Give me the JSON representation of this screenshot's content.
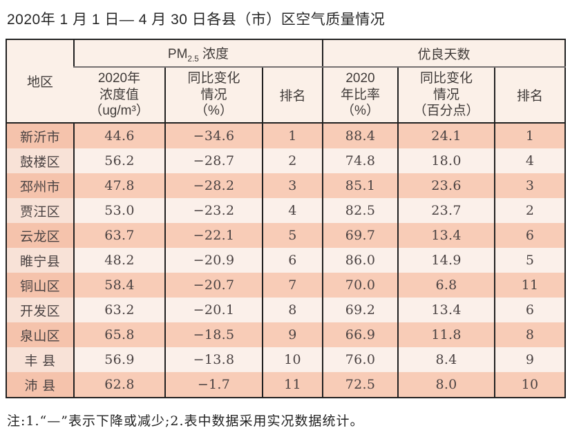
{
  "title": "2020年 1 月 1 日— 4 月 30 日各县（市）区空气质量情况",
  "table": {
    "header": {
      "region": "地区",
      "pm_group": {
        "prefix": "PM",
        "sub": "2.5",
        "suffix": " 浓度"
      },
      "good_group": "优良天数",
      "pm_value": "2020年\n浓度值\n（ug/m³）",
      "pm_change": "同比变化\n情况\n（%）",
      "pm_rank": "排名",
      "good_rate": "2020\n年比率\n（%）",
      "good_change": "同比变化\n情况\n（百分点）",
      "good_rank": "排名"
    },
    "rows": [
      {
        "region": "新沂市",
        "pm_value": "44.6",
        "pm_change": "−34.6",
        "pm_rank": "1",
        "good_rate": "88.4",
        "good_change": "24.1",
        "good_rank": "1"
      },
      {
        "region": "鼓楼区",
        "pm_value": "56.2",
        "pm_change": "−28.7",
        "pm_rank": "2",
        "good_rate": "74.8",
        "good_change": "18.0",
        "good_rank": "4"
      },
      {
        "region": "邳州市",
        "pm_value": "47.8",
        "pm_change": "−28.2",
        "pm_rank": "3",
        "good_rate": "85.1",
        "good_change": "23.6",
        "good_rank": "3"
      },
      {
        "region": "贾汪区",
        "pm_value": "53.0",
        "pm_change": "−23.2",
        "pm_rank": "4",
        "good_rate": "82.5",
        "good_change": "23.7",
        "good_rank": "2"
      },
      {
        "region": "云龙区",
        "pm_value": "63.7",
        "pm_change": "−22.1",
        "pm_rank": "5",
        "good_rate": "69.7",
        "good_change": "13.4",
        "good_rank": "6"
      },
      {
        "region": "睢宁县",
        "pm_value": "48.2",
        "pm_change": "−20.9",
        "pm_rank": "6",
        "good_rate": "86.0",
        "good_change": "14.9",
        "good_rank": "5"
      },
      {
        "region": "铜山区",
        "pm_value": "58.4",
        "pm_change": "−20.7",
        "pm_rank": "7",
        "good_rate": "70.0",
        "good_change": "6.8",
        "good_rank": "11"
      },
      {
        "region": "开发区",
        "pm_value": "63.2",
        "pm_change": "−20.1",
        "pm_rank": "8",
        "good_rate": "69.2",
        "good_change": "13.4",
        "good_rank": "6"
      },
      {
        "region": "泉山区",
        "pm_value": "65.8",
        "pm_change": "−18.5",
        "pm_rank": "9",
        "good_rate": "66.9",
        "good_change": "11.8",
        "good_rank": "8"
      },
      {
        "region": "丰 县",
        "pm_value": "56.9",
        "pm_change": "−13.8",
        "pm_rank": "10",
        "good_rate": "76.0",
        "good_change": "8.4",
        "good_rank": "9"
      },
      {
        "region": "沛 县",
        "pm_value": "62.8",
        "pm_change": "−1.7",
        "pm_rank": "11",
        "good_rate": "72.5",
        "good_change": "8.0",
        "good_rank": "10"
      }
    ]
  },
  "footnote": "注:1.“—”表示下降或减少;2.表中数据采用实况数据统计。",
  "colors": {
    "row_odd": "#f8ccb7",
    "row_even": "#fbf0ea",
    "region_col_odd": "#f5c3ac",
    "region_col_even": "#f8e2d7",
    "header_bg": "#fbf0e8",
    "border_dark": "#202020",
    "header_divider_gray": "#747070",
    "table_text": "#4a4242"
  }
}
